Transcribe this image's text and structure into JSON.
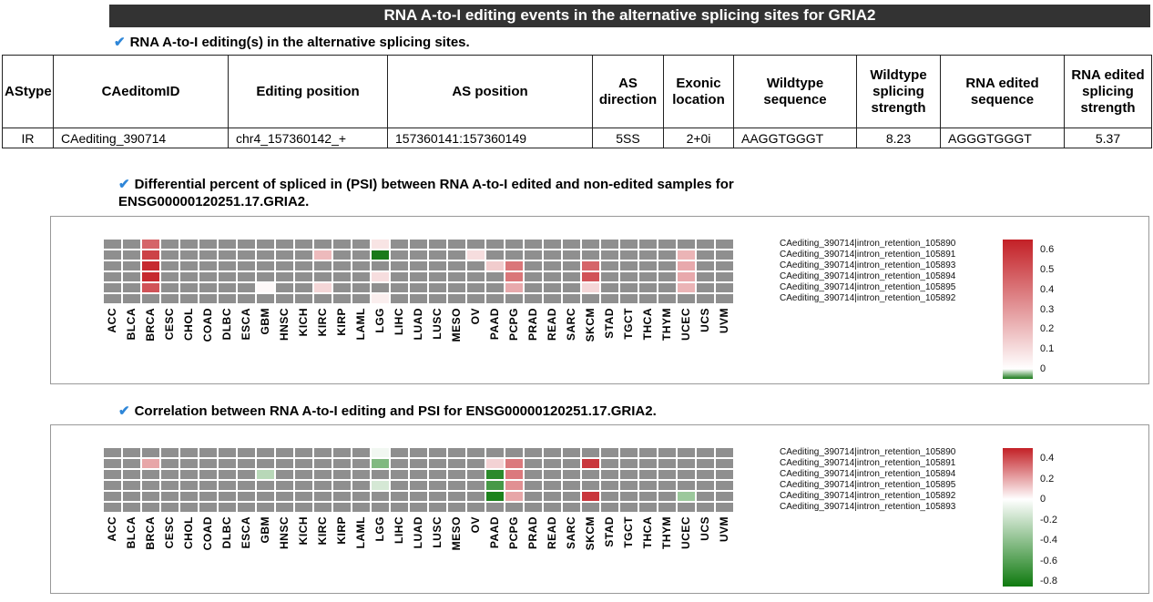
{
  "page": {
    "title": "RNA A-to-I editing events in the alternative splicing sites for GRIA2"
  },
  "icons": {
    "check": "✔"
  },
  "sections": [
    {
      "heading": "RNA A-to-I editing(s) in the alternative splicing sites."
    },
    {
      "heading": "Differential percent of spliced in (PSI) between RNA A-to-I edited and non-edited samples for ENSG00000120251.17.GRIA2."
    },
    {
      "heading": "Correlation between RNA A-to-I editing and PSI for ENSG00000120251.17.GRIA2."
    }
  ],
  "table": {
    "headers": [
      "AStype",
      "CAeditomID",
      "Editing position",
      "AS position",
      "AS direction",
      "Exonic location",
      "Wildtype sequence",
      "Wildtype splicing strength",
      "RNA edited sequence",
      "RNA edited splicing strength"
    ],
    "rows": [
      [
        "IR",
        "CAediting_390714",
        "chr4_157360142_+",
        "157360141:157360149",
        "5SS",
        "2+0i",
        "AAGGTGGGT",
        "8.23",
        "AGGGTGGGT",
        "5.37"
      ]
    ]
  },
  "chart_data": [
    {
      "type": "heatmap",
      "title": "Differential percent of spliced in (PSI) between RNA A-to-I edited and non-edited samples for ENSG00000120251.17.GRIA2.",
      "x_categories": [
        "ACC",
        "BLCA",
        "BRCA",
        "CESC",
        "CHOL",
        "COAD",
        "DLBC",
        "ESCA",
        "GBM",
        "HNSC",
        "KICH",
        "KIRC",
        "KIRP",
        "LAML",
        "LGG",
        "LIHC",
        "LUAD",
        "LUSC",
        "MESO",
        "OV",
        "PAAD",
        "PCPG",
        "PRAD",
        "READ",
        "SARC",
        "SKCM",
        "STAD",
        "TGCT",
        "THCA",
        "THYM",
        "UCEC",
        "UCS",
        "UVM"
      ],
      "rows": [
        {
          "label": "CAediting_390714|intron_retention_105890",
          "values": {
            "BRCA": 0.45,
            "LGG": 0.08
          }
        },
        {
          "label": "CAediting_390714|intron_retention_105891",
          "values": {
            "BRCA": 0.55,
            "KIRC": 0.2,
            "LGG": -0.05,
            "OV": 0.1,
            "UCEC": 0.22
          }
        },
        {
          "label": "CAediting_390714|intron_retention_105893",
          "values": {
            "BRCA": 0.62,
            "PAAD": 0.15,
            "PCPG": 0.4,
            "SKCM": 0.45,
            "UCEC": 0.25
          }
        },
        {
          "label": "CAediting_390714|intron_retention_105894",
          "values": {
            "BRCA": 0.62,
            "LGG": 0.1,
            "PCPG": 0.4,
            "SKCM": 0.5,
            "UCEC": 0.25
          }
        },
        {
          "label": "CAediting_390714|intron_retention_105895",
          "values": {
            "BRCA": 0.5,
            "GBM": 0.02,
            "KIRC": 0.12,
            "PCPG": 0.25,
            "SKCM": 0.12,
            "UCEC": 0.22
          }
        },
        {
          "label": "CAediting_390714|intron_retention_105892",
          "values": {
            "LGG": 0.05
          }
        }
      ],
      "no_data_color": "#8f8f8f",
      "scale": {
        "min": -0.05,
        "max": 0.65,
        "max_color": "#c32026",
        "min_color": "#1a7a1a"
      },
      "colorbar_ticks": [
        "0.6",
        "0.5",
        "0.4",
        "0.3",
        "0.2",
        "0.1",
        "0"
      ],
      "legend_position": "right",
      "grid": true
    },
    {
      "type": "heatmap",
      "title": "Correlation between RNA A-to-I editing and PSI for ENSG00000120251.17.GRIA2.",
      "x_categories": [
        "ACC",
        "BLCA",
        "BRCA",
        "CESC",
        "CHOL",
        "COAD",
        "DLBC",
        "ESCA",
        "GBM",
        "HNSC",
        "KICH",
        "KIRC",
        "KIRP",
        "LAML",
        "LGG",
        "LIHC",
        "LUAD",
        "LUSC",
        "MESO",
        "OV",
        "PAAD",
        "PCPG",
        "PRAD",
        "READ",
        "SARC",
        "SKCM",
        "STAD",
        "TGCT",
        "THCA",
        "THYM",
        "UCEC",
        "UCS",
        "UVM"
      ],
      "rows": [
        {
          "label": "CAediting_390714|intron_retention_105890",
          "values": {
            "LGG": -0.05
          }
        },
        {
          "label": "CAediting_390714|intron_retention_105891",
          "values": {
            "BRCA": 0.2,
            "LGG": -0.45,
            "PAAD": 0.1,
            "PCPG": 0.3,
            "SKCM": 0.45
          }
        },
        {
          "label": "CAediting_390714|intron_retention_105894",
          "values": {
            "GBM": -0.25,
            "PAAD": -0.75,
            "PCPG": 0.3
          }
        },
        {
          "label": "CAediting_390714|intron_retention_105895",
          "values": {
            "LGG": -0.15,
            "PAAD": -0.65,
            "PCPG": 0.25
          }
        },
        {
          "label": "CAediting_390714|intron_retention_105892",
          "values": {
            "PAAD": -0.8,
            "PCPG": 0.2,
            "SKCM": 0.45,
            "UCEC": -0.35
          }
        },
        {
          "label": "CAediting_390714|intron_retention_105893",
          "values": {}
        }
      ],
      "no_data_color": "#8f8f8f",
      "scale": {
        "min": -0.85,
        "max": 0.5,
        "max_color": "#c32026",
        "min_color": "#0f7a0f"
      },
      "colorbar_ticks": [
        "0.4",
        "0.2",
        "0",
        "-0.2",
        "-0.4",
        "-0.6",
        "-0.8"
      ],
      "legend_position": "right",
      "grid": true
    }
  ]
}
